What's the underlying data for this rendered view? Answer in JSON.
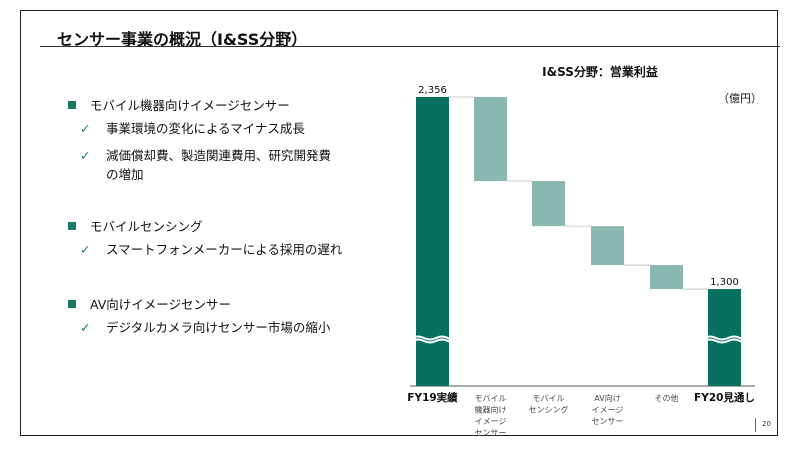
{
  "slide": {
    "title": "センサー事業の概況（I&SS分野）",
    "page_number": "20"
  },
  "bullets": [
    {
      "heading": "モバイル機器向けイメージセンサー",
      "items": [
        "事業環境の変化によるマイナス成長",
        "減価償却費、製造関連費用、研究開発費",
        "の増加"
      ]
    },
    {
      "heading": "モバイルセンシング",
      "items": [
        "スマートフォンメーカーによる採用の遅れ"
      ]
    },
    {
      "heading": "AV向けイメージセンサー",
      "items": [
        "デジタルカメラ向けセンサー市場の縮小"
      ]
    }
  ],
  "check_glyph": "✓",
  "colors": {
    "total": "#08705f",
    "delta": "#8ab7b0",
    "bullet": "#1a7a66"
  },
  "chart_data": {
    "type": "bar",
    "subtype": "waterfall",
    "title": "I&SS分野：営業利益",
    "unit": "（億円）",
    "categories": [
      "FY19実績",
      "モバイル\n機器向け\nイメージ\nセンサー",
      "モバイル\nセンシング",
      "AV向け\nイメージ\nセンサー",
      "その他",
      "FY20見通し"
    ],
    "kinds": [
      "total",
      "delta",
      "delta",
      "delta",
      "delta",
      "total"
    ],
    "values": [
      2356,
      -462,
      -248,
      -214,
      -132,
      1300
    ],
    "data_labels": [
      "2,356",
      "",
      "",
      "",
      "",
      "1,300"
    ],
    "axis_break": true,
    "ylim": [
      767,
      2356
    ],
    "xlabel": "",
    "ylabel": ""
  }
}
